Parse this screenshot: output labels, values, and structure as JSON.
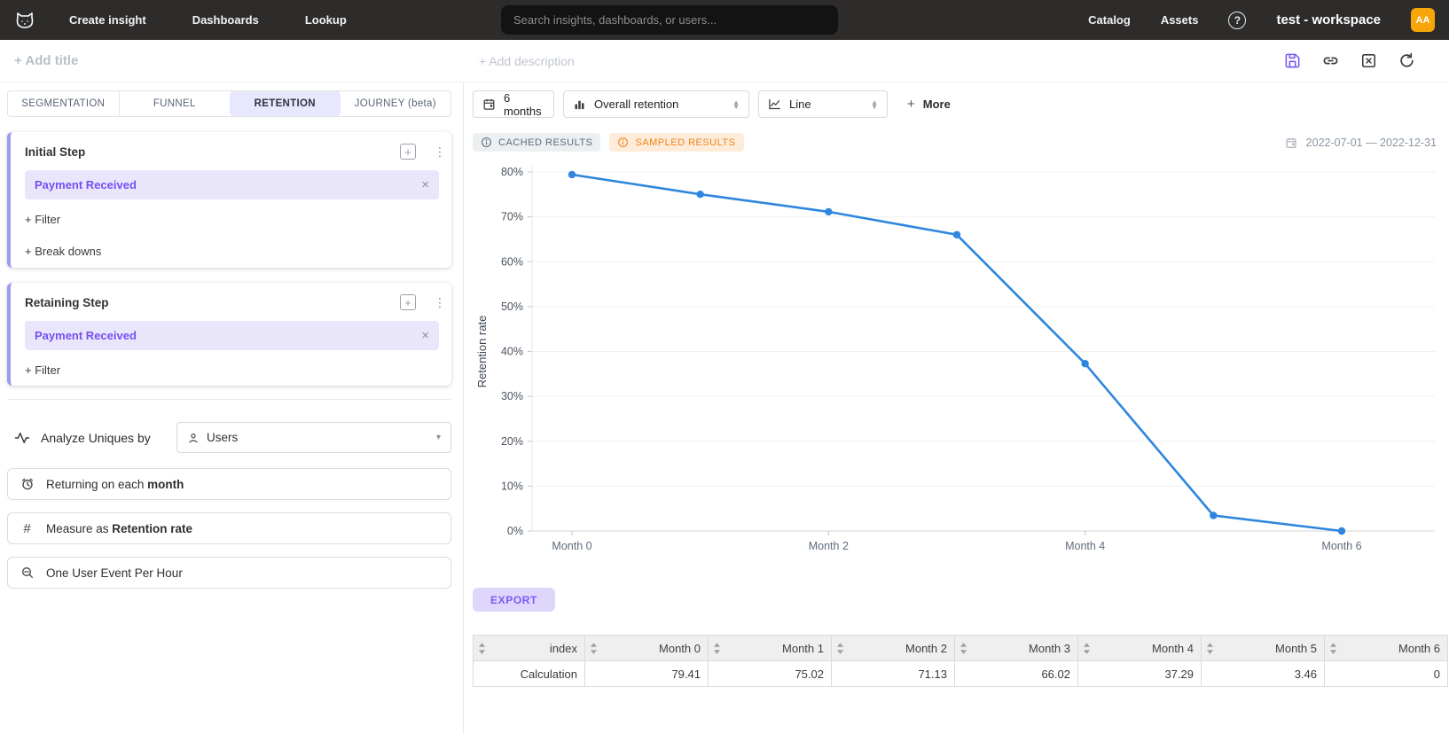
{
  "navbar": {
    "items": [
      "Create insight",
      "Dashboards",
      "Lookup"
    ],
    "search_placeholder": "Search insights, dashboards, or users...",
    "right_items": [
      "Catalog",
      "Assets"
    ],
    "help": "?",
    "workspace": "test - workspace",
    "avatar_initials": "AA"
  },
  "header": {
    "add_title": "+ Add title",
    "add_description": "+ Add description"
  },
  "sidebar": {
    "tabs": [
      {
        "label": "SEGMENTATION"
      },
      {
        "label": "FUNNEL"
      },
      {
        "label": "RETENTION"
      },
      {
        "label": "JOURNEY (beta)"
      }
    ],
    "initial_step": {
      "title": "Initial Step",
      "event": "Payment Received",
      "close": "×",
      "plus": "+",
      "filter_label": "+ Filter",
      "breakdowns_label": "+ Break downs"
    },
    "retaining_step": {
      "title": "Retaining Step",
      "event": "Payment Received",
      "close": "×",
      "plus": "+",
      "filter_label": "+ Filter"
    },
    "analyze": {
      "label": "Analyze Uniques by",
      "value": "Users",
      "caret": "▾"
    },
    "returning": {
      "prefix": "Returning on each ",
      "bold": "month"
    },
    "measure": {
      "prefix": "Measure as ",
      "bold": "Retention rate",
      "hash": "#"
    },
    "sampling": {
      "label": "One User Event Per Hour"
    }
  },
  "controls": {
    "date_range_button": "6 months",
    "retention_type": "Overall retention",
    "chart_type": "Line",
    "more_plus": "+",
    "more_label": "More",
    "cached_badge": "CACHED RESULTS",
    "sampled_badge": "SAMPLED RESULTS",
    "date_range": "2022-07-01 — 2022-12-31"
  },
  "chart_data": {
    "type": "line",
    "x_categories": [
      "Month 0",
      "Month 1",
      "Month 2",
      "Month 3",
      "Month 4",
      "Month 5",
      "Month 6"
    ],
    "series": [
      {
        "name": "Overall retention",
        "values": [
          79.41,
          75.02,
          71.13,
          66.02,
          37.29,
          3.46,
          0
        ]
      }
    ],
    "ylabel": "Retention rate",
    "xlabel": "",
    "ylim": [
      0,
      84
    ],
    "y_tick_step": 10,
    "y_tick_max": 80,
    "y_tick_suffix": "%",
    "x_labeled_indices": [
      0,
      2,
      4,
      6
    ],
    "grid": "horizontal",
    "legend": "none",
    "line_color": "#2e86de"
  },
  "export_label": "EXPORT",
  "table": {
    "columns": [
      "index",
      "Month 0",
      "Month 1",
      "Month 2",
      "Month 3",
      "Month 4",
      "Month 5",
      "Month 6"
    ],
    "rows": [
      [
        "Calculation",
        "79.41",
        "75.02",
        "71.13",
        "66.02",
        "37.29",
        "3.46",
        "0"
      ]
    ]
  }
}
